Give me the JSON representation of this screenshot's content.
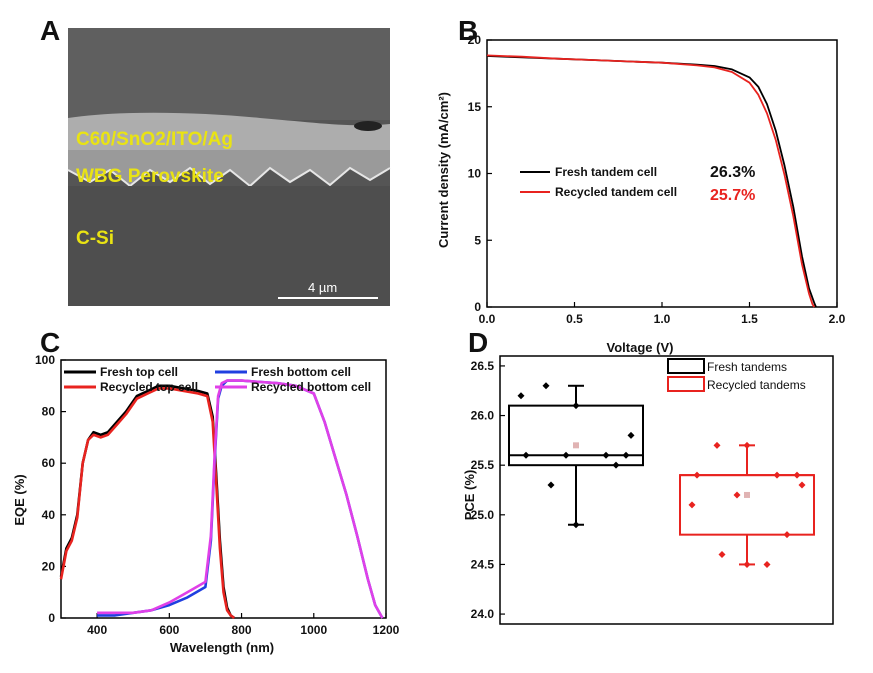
{
  "panels": {
    "a": "A",
    "b": "B",
    "c": "C",
    "d": "D"
  },
  "sem": {
    "layer1": "C60/SnO2/ITO/Ag",
    "layer2": "WBG Perovskite",
    "layer3": "C-Si",
    "scalebar": "4 µm",
    "label_color": "#e9e313"
  },
  "chart_data": [
    {
      "id": "B",
      "type": "line",
      "xlabel": "Voltage (V)",
      "ylabel": "Current density (mA/cm²)",
      "xlim": [
        0,
        2.0
      ],
      "ylim": [
        0,
        20
      ],
      "xticks": [
        "0.0",
        "0.5",
        "1.0",
        "1.5",
        "2.0"
      ],
      "yticks": [
        "0",
        "5",
        "10",
        "15",
        "20"
      ],
      "series": [
        {
          "name": "Fresh tandem cell",
          "color": "#000000",
          "pce": "26.3%",
          "x": [
            0,
            0.2,
            0.4,
            0.6,
            0.8,
            1.0,
            1.2,
            1.3,
            1.4,
            1.5,
            1.55,
            1.6,
            1.65,
            1.7,
            1.75,
            1.8,
            1.84,
            1.87,
            1.88
          ],
          "y": [
            18.8,
            18.7,
            18.6,
            18.5,
            18.4,
            18.3,
            18.15,
            18.05,
            17.8,
            17.2,
            16.5,
            15.2,
            13.2,
            10.6,
            7.5,
            3.8,
            1.4,
            0.3,
            0
          ]
        },
        {
          "name": "Recycled tandem cell",
          "color": "#e8231f",
          "pce": "25.7%",
          "x": [
            0,
            0.2,
            0.4,
            0.6,
            0.8,
            1.0,
            1.2,
            1.3,
            1.4,
            1.5,
            1.55,
            1.6,
            1.65,
            1.7,
            1.75,
            1.8,
            1.84,
            1.86,
            1.87
          ],
          "y": [
            18.85,
            18.75,
            18.6,
            18.5,
            18.4,
            18.3,
            18.1,
            17.95,
            17.6,
            16.8,
            15.9,
            14.5,
            12.5,
            9.9,
            6.8,
            3.2,
            1.0,
            0.2,
            0
          ]
        }
      ]
    },
    {
      "id": "C",
      "type": "line",
      "xlabel": "Wavelength (nm)",
      "ylabel": "EQE (%)",
      "xlim": [
        300,
        1200
      ],
      "ylim": [
        0,
        100
      ],
      "xticks": [
        "400",
        "600",
        "800",
        "1000",
        "1200"
      ],
      "yticks": [
        "0",
        "20",
        "40",
        "60",
        "80",
        "100"
      ],
      "series": [
        {
          "name": "Fresh top cell",
          "color": "#000000",
          "x": [
            300,
            315,
            330,
            345,
            360,
            375,
            390,
            410,
            430,
            455,
            480,
            510,
            540,
            570,
            600,
            640,
            680,
            705,
            720,
            730,
            740,
            750,
            760,
            770,
            780
          ],
          "y": [
            16,
            27,
            31,
            40,
            60,
            69,
            72,
            71,
            72,
            76,
            80,
            86,
            88,
            90,
            90,
            89,
            88,
            87,
            78,
            55,
            30,
            12,
            4,
            1,
            0
          ]
        },
        {
          "name": "Recycled top cell",
          "color": "#e8231f",
          "x": [
            300,
            315,
            330,
            345,
            360,
            375,
            390,
            410,
            430,
            455,
            480,
            510,
            540,
            570,
            600,
            640,
            680,
            705,
            720,
            730,
            740,
            750,
            760,
            770,
            780
          ],
          "y": [
            15,
            26,
            30,
            39,
            60,
            69,
            71,
            70,
            71,
            75,
            79,
            85,
            87,
            89,
            89,
            88,
            87,
            86,
            76,
            52,
            27,
            10,
            3,
            1,
            0
          ]
        },
        {
          "name": "Fresh bottom cell",
          "color": "#1f3fe0",
          "x": [
            400,
            450,
            500,
            550,
            600,
            650,
            700,
            715,
            725,
            735,
            745,
            760,
            800,
            900,
            950,
            1000,
            1030,
            1060,
            1090,
            1120,
            1150,
            1170,
            1190
          ],
          "y": [
            1,
            1,
            2,
            3,
            5,
            8,
            12,
            30,
            60,
            85,
            90,
            92,
            92,
            91,
            90,
            87,
            76,
            62,
            48,
            32,
            15,
            5,
            0
          ]
        },
        {
          "name": "Recycled bottom cell",
          "color": "#e040e8",
          "x": [
            400,
            450,
            500,
            550,
            600,
            650,
            700,
            715,
            725,
            735,
            745,
            760,
            800,
            900,
            950,
            1000,
            1030,
            1060,
            1090,
            1120,
            1150,
            1170,
            1190
          ],
          "y": [
            2,
            2,
            2,
            3,
            6,
            10,
            14,
            32,
            62,
            86,
            91,
            92,
            92,
            91,
            90,
            87,
            76,
            62,
            48,
            32,
            15,
            5,
            0
          ]
        }
      ]
    },
    {
      "id": "D",
      "type": "box",
      "ylabel": "PCE (%)",
      "ylim": [
        23.9,
        26.6
      ],
      "yticks": [
        "24.0",
        "24.5",
        "25.0",
        "25.5",
        "26.0",
        "26.5"
      ],
      "groups": [
        {
          "name": "Fresh tandems",
          "color": "#000000",
          "q1": 25.5,
          "median": 25.6,
          "q3": 26.1,
          "whisker_low": 24.9,
          "whisker_high": 26.3,
          "mean": 25.7,
          "points": [
            26.3,
            26.1,
            25.6,
            25.6,
            25.6,
            25.6,
            25.5,
            25.3,
            24.9,
            26.2,
            25.8
          ]
        },
        {
          "name": "Recycled tandems",
          "color": "#e8231f",
          "q1": 24.8,
          "median": 25.4,
          "q3": 25.4,
          "whisker_low": 24.5,
          "whisker_high": 25.7,
          "mean": 25.2,
          "points": [
            25.7,
            25.7,
            25.4,
            25.4,
            25.4,
            25.2,
            24.8,
            24.6,
            24.5,
            25.1,
            25.3,
            24.5
          ]
        }
      ]
    }
  ]
}
